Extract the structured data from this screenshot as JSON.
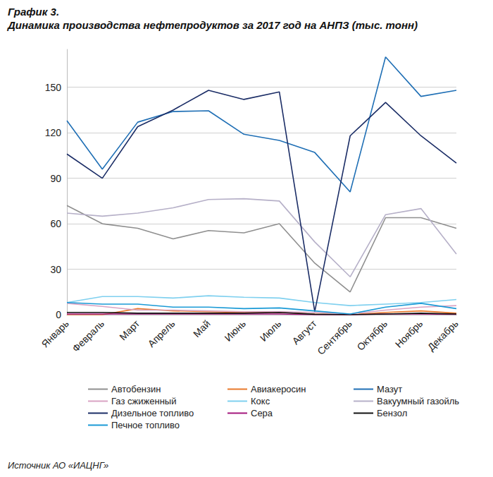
{
  "chart_data": {
    "type": "line",
    "title": "График 3.",
    "subtitle": "Динамика производства нефтепродуктов за 2017 год на АНПЗ (тыс. тонн)",
    "annotations": [
      "Источник АО «ИАЦНГ»"
    ],
    "categories": [
      "Январь",
      "Февраль",
      "Март",
      "Апрель",
      "Май",
      "Июнь",
      "Июль",
      "Август",
      "Сентябрь",
      "Октябрь",
      "Ноябрь",
      "Декабрь"
    ],
    "ylim": [
      0,
      175
    ],
    "yticks": [
      0,
      30,
      60,
      90,
      120,
      150
    ],
    "grid": true,
    "legend": "bottom",
    "series": [
      {
        "name": "Автобензин",
        "color": "#8f8f8f",
        "values": [
          72,
          60,
          57,
          50,
          55.5,
          54,
          60,
          34,
          15,
          64,
          64,
          57
        ]
      },
      {
        "name": "Авиакеросин",
        "color": "#e8782a",
        "values": [
          0,
          0,
          4,
          2.5,
          2,
          1.5,
          1.5,
          0.5,
          0,
          1.5,
          2.5,
          1
        ]
      },
      {
        "name": "Мазут",
        "color": "#1f6fb5",
        "values": [
          128,
          96,
          127,
          134,
          134.5,
          119,
          115,
          107,
          81,
          170,
          144,
          148
        ]
      },
      {
        "name": "Газ сжиженный",
        "color": "#d9a3c3",
        "values": [
          7.5,
          5.5,
          3,
          3,
          2.5,
          2,
          2,
          1.5,
          0.5,
          3,
          5,
          6
        ]
      },
      {
        "name": "Кокс",
        "color": "#7fd0ef",
        "values": [
          8,
          12,
          12,
          11,
          12.5,
          11.5,
          11,
          8,
          6,
          7,
          8,
          10
        ]
      },
      {
        "name": "Вакуумный газойль",
        "color": "#b6b0c8",
        "values": [
          67,
          65,
          67,
          70.5,
          76,
          76.5,
          75,
          48,
          25,
          66,
          70,
          40
        ]
      },
      {
        "name": "Дизельное топливо",
        "color": "#1b2d66",
        "values": [
          106,
          90,
          124,
          135,
          148,
          142,
          147,
          2,
          118,
          140,
          118,
          100
        ]
      },
      {
        "name": "Сера",
        "color": "#a3177c",
        "values": [
          0.5,
          0.5,
          0.5,
          0.5,
          0.5,
          0.5,
          0.5,
          0,
          0,
          0.5,
          0.5,
          0.3
        ]
      },
      {
        "name": "Бензол",
        "color": "#111111",
        "values": [
          1.5,
          1.5,
          1,
          1,
          1,
          1,
          1.5,
          0.3,
          0,
          0.5,
          1,
          0.5
        ]
      },
      {
        "name": "Печное топливо",
        "color": "#1a9ad6",
        "values": [
          8,
          7,
          7,
          5,
          5,
          4,
          4.5,
          2.5,
          0.5,
          5,
          7.5,
          4
        ]
      }
    ]
  }
}
